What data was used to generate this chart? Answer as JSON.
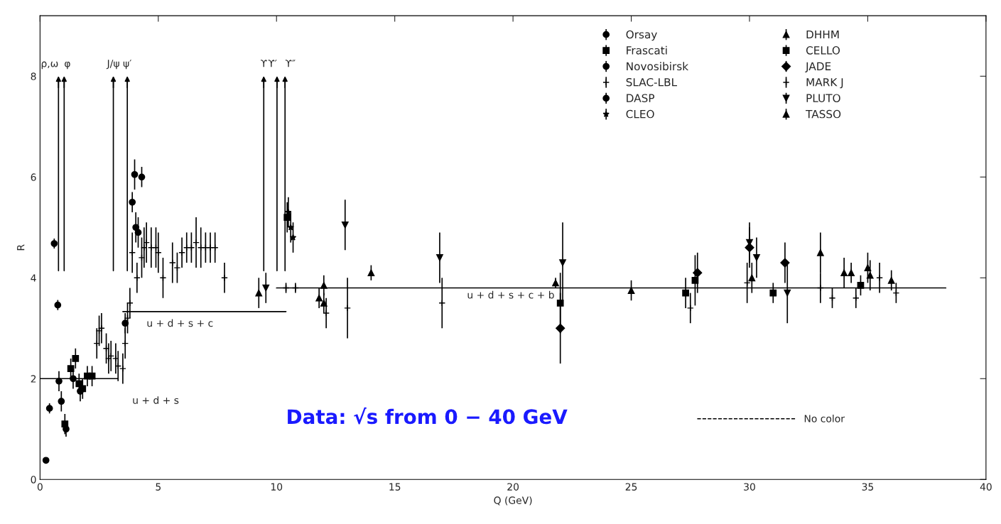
{
  "chart_data": {
    "type": "scatter",
    "xlabel": "Q (GeV)",
    "ylabel": "R",
    "xlim": [
      0,
      40
    ],
    "ylim": [
      0,
      9.2
    ],
    "xticks": [
      0,
      5,
      10,
      15,
      20,
      25,
      30,
      35,
      40
    ],
    "yticks": [
      0,
      2,
      4,
      6,
      8
    ],
    "grid": false,
    "legend": "top right",
    "series": [
      {
        "name": "Orsay",
        "color": "#000000",
        "marker": "circle",
        "x": [
          0.25,
          0.4,
          0.6,
          0.75,
          0.8
        ],
        "values": [
          0.38,
          1.41,
          4.68,
          3.46,
          1.95
        ],
        "errors": [
          0.05,
          0.1,
          0.1,
          0.1,
          0.2
        ]
      },
      {
        "name": "Frascati",
        "color": "#000000",
        "marker": "square",
        "x": [
          1.05,
          1.3,
          1.5,
          1.65,
          1.8,
          2.0,
          2.2
        ],
        "values": [
          1.1,
          2.2,
          2.4,
          1.9,
          1.8,
          2.05,
          2.05
        ],
        "errors": [
          0.2,
          0.2,
          0.2,
          0.2,
          0.2,
          0.2,
          0.2
        ]
      },
      {
        "name": "Novosibirsk",
        "color": "#000000",
        "marker": "circle",
        "x": [
          0.9,
          1.1,
          1.4,
          1.7
        ],
        "values": [
          1.55,
          1.0,
          2.0,
          1.75
        ],
        "errors": [
          0.2,
          0.15,
          0.2,
          0.2
        ]
      },
      {
        "name": "SLAC-LBL",
        "color": "#000000",
        "marker": "cross",
        "x": [
          2.4,
          2.5,
          2.6,
          2.8,
          2.9,
          3.0,
          3.2,
          3.3,
          3.5,
          3.6,
          3.7,
          3.8,
          3.9,
          4.1,
          4.3,
          4.4,
          4.5,
          4.7,
          4.9,
          5.0,
          5.2,
          5.6,
          5.8,
          6.0,
          6.2,
          6.4,
          6.6,
          6.8,
          7.0,
          7.2,
          7.4,
          7.8
        ],
        "values": [
          2.7,
          2.95,
          3.0,
          2.6,
          2.4,
          2.45,
          2.4,
          2.25,
          2.2,
          2.7,
          3.2,
          3.5,
          4.5,
          4.0,
          4.4,
          4.6,
          4.7,
          4.6,
          4.6,
          4.5,
          4.0,
          4.3,
          4.2,
          4.5,
          4.6,
          4.6,
          4.7,
          4.6,
          4.6,
          4.6,
          4.6,
          4.0
        ],
        "errors": [
          0.3,
          0.3,
          0.3,
          0.3,
          0.3,
          0.3,
          0.3,
          0.3,
          0.3,
          0.3,
          0.3,
          0.3,
          0.4,
          0.3,
          0.4,
          0.4,
          0.4,
          0.4,
          0.4,
          0.4,
          0.4,
          0.4,
          0.3,
          0.3,
          0.3,
          0.3,
          0.5,
          0.4,
          0.3,
          0.3,
          0.3,
          0.3
        ]
      },
      {
        "name": "DASP",
        "color": "#000000",
        "marker": "circle",
        "x": [
          3.6,
          3.9,
          4.0,
          4.05,
          4.15,
          4.3
        ],
        "values": [
          3.1,
          5.5,
          6.05,
          5.0,
          4.9,
          6.0
        ],
        "errors": [
          0.2,
          0.2,
          0.3,
          0.3,
          0.3,
          0.2
        ]
      },
      {
        "name": "CLEO",
        "color": "#000000",
        "marker": "star",
        "x": [
          10.5,
          10.6,
          10.7
        ],
        "values": [
          5.3,
          5.0,
          4.8
        ],
        "errors": [
          0.3,
          0.3,
          0.3
        ]
      },
      {
        "name": "DHHM",
        "color": "#000000",
        "marker": "triangle",
        "x": [
          9.25,
          11.8,
          12.0
        ],
        "values": [
          3.7,
          3.6,
          3.5
        ],
        "errors": [
          0.3,
          0.2,
          0.2
        ]
      },
      {
        "name": "CELLO",
        "color": "#000000",
        "marker": "square",
        "x": [
          10.45,
          22.0,
          27.3,
          27.7,
          31.0,
          34.7
        ],
        "values": [
          5.2,
          3.5,
          3.7,
          3.95,
          3.7,
          3.85
        ],
        "errors": [
          0.3,
          0.6,
          0.3,
          0.5,
          0.2,
          0.2
        ]
      },
      {
        "name": "JADE",
        "color": "#000000",
        "marker": "diamond",
        "x": [
          22.0,
          27.8,
          30.0,
          31.5
        ],
        "values": [
          3.0,
          4.1,
          4.6,
          4.3
        ],
        "errors": [
          0.7,
          0.4,
          0.4,
          0.4
        ]
      },
      {
        "name": "MARK J",
        "color": "#000000",
        "marker": "cross",
        "x": [
          10.4,
          10.8,
          12.1,
          13.0,
          17.0,
          27.5,
          29.9,
          33.0,
          33.5,
          34.5,
          35.5,
          36.2
        ],
        "values": [
          3.8,
          3.8,
          3.3,
          3.4,
          3.5,
          3.4,
          3.9,
          3.8,
          3.6,
          3.6,
          4.0,
          3.7
        ],
        "errors": [
          0.1,
          0.1,
          0.3,
          0.6,
          0.5,
          0.3,
          0.4,
          0.3,
          0.2,
          0.2,
          0.3,
          0.2
        ]
      },
      {
        "name": "PLUTO",
        "color": "#000000",
        "marker": "triangle_down",
        "x": [
          9.55,
          12.9,
          16.9,
          22.1,
          30.0,
          30.3,
          31.6
        ],
        "values": [
          3.8,
          5.05,
          4.4,
          4.3,
          4.7,
          4.4,
          3.7
        ],
        "errors": [
          0.3,
          0.5,
          0.5,
          0.8,
          0.4,
          0.4,
          0.6
        ]
      },
      {
        "name": "TASSO",
        "color": "#000000",
        "marker": "triangle",
        "x": [
          12.0,
          14.0,
          21.8,
          25.0,
          30.1,
          33.0,
          34.0,
          34.3,
          35.0,
          35.1,
          36.0
        ],
        "values": [
          3.85,
          4.1,
          3.9,
          3.75,
          4.0,
          4.5,
          4.1,
          4.1,
          4.2,
          4.05,
          3.95
        ],
        "errors": [
          0.2,
          0.15,
          0.1,
          0.2,
          0.3,
          0.4,
          0.3,
          0.2,
          0.3,
          0.3,
          0.2
        ]
      },
      {
        "type": "line",
        "name": "u + d + s",
        "color": "#000000",
        "x": [
          0,
          3.3
        ],
        "values": [
          2.0,
          2.0
        ]
      },
      {
        "type": "line",
        "name": "u + d + s + c",
        "color": "#000000",
        "x": [
          3.5,
          10.4
        ],
        "values": [
          3.33,
          3.33
        ]
      },
      {
        "type": "line",
        "name": "u + d + s + c + b",
        "color": "#000000",
        "x": [
          10.0,
          38.3
        ],
        "values": [
          3.8,
          3.8
        ]
      },
      {
        "type": "line",
        "name": "No color",
        "color": "#000000",
        "line_style": "dashed"
      }
    ],
    "ref_lines": [
      {
        "axis": "x",
        "value": 0.78,
        "label": "ρ,ω"
      },
      {
        "axis": "x",
        "value": 1.02,
        "label": "φ"
      },
      {
        "axis": "x",
        "value": 3.1,
        "label": "J/ψ"
      },
      {
        "axis": "x",
        "value": 3.69,
        "label": "ψ′"
      },
      {
        "axis": "x",
        "value": 9.46,
        "label": "ϒ"
      },
      {
        "axis": "x",
        "value": 10.02,
        "label": "ϒ′"
      },
      {
        "axis": "x",
        "value": 10.36,
        "label": "ϒ″"
      }
    ],
    "annotations": [
      "Data: √s from 0 − 40 GeV"
    ]
  }
}
